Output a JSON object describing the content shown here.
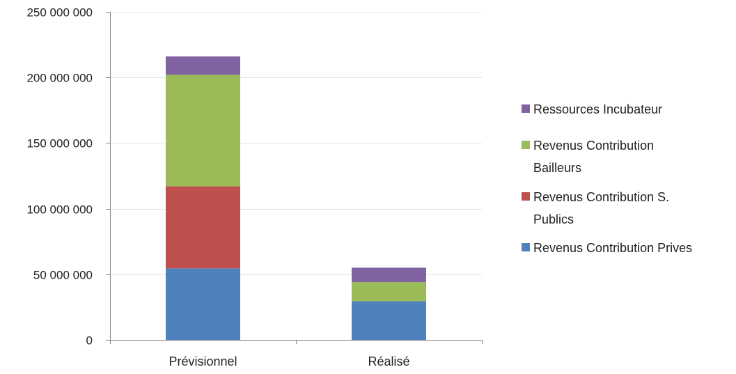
{
  "chart_data": {
    "type": "bar",
    "stacked": true,
    "categories": [
      "Prévisionnel",
      "Réalisé"
    ],
    "series": [
      {
        "name": "Revenus Contribution Prives",
        "values": [
          54500000,
          29500000
        ],
        "color": "#4F81BD"
      },
      {
        "name": "Revenus Contribution S. Publics",
        "values": [
          62500000,
          0
        ],
        "color": "#C0504D"
      },
      {
        "name": "Revenus Contribution Bailleurs",
        "values": [
          85000000,
          14500000
        ],
        "color": "#9BBB59"
      },
      {
        "name": "Ressources Incubateur",
        "values": [
          14000000,
          11000000
        ],
        "color": "#8064A2"
      }
    ],
    "ylim": [
      0,
      250000000
    ],
    "yticks": [
      0,
      50000000,
      100000000,
      150000000,
      200000000,
      250000000
    ],
    "ytick_labels": [
      "0",
      "50 000 000",
      "100 000 000",
      "150 000 000",
      "200 000 000",
      "250 000 000"
    ],
    "grid": true,
    "legend_position": "right",
    "legend_lines": [
      {
        "series": 3,
        "lines": [
          "Ressources Incubateur"
        ]
      },
      {
        "series": 2,
        "lines": [
          "Revenus Contribution",
          "Bailleurs"
        ]
      },
      {
        "series": 1,
        "lines": [
          "Revenus Contribution S.",
          "Publics"
        ]
      },
      {
        "series": 0,
        "lines": [
          "Revenus Contribution Prives"
        ]
      }
    ],
    "title": "",
    "xlabel": "",
    "ylabel": ""
  }
}
